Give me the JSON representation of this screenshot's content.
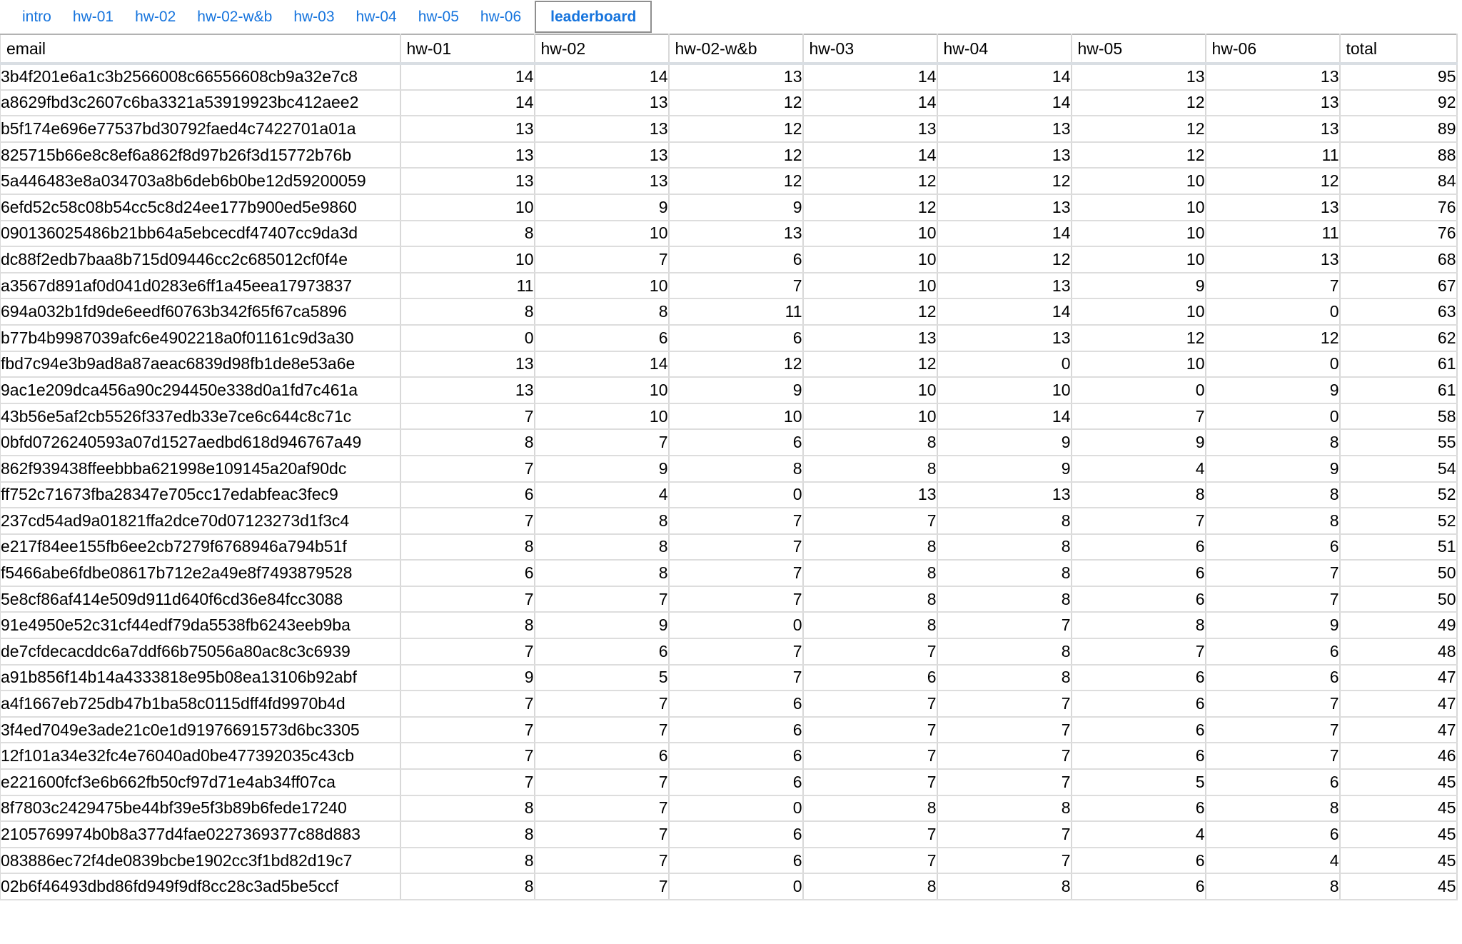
{
  "tabs": {
    "items": [
      {
        "label": "intro",
        "active": false
      },
      {
        "label": "hw-01",
        "active": false
      },
      {
        "label": "hw-02",
        "active": false
      },
      {
        "label": "hw-02-w&b",
        "active": false
      },
      {
        "label": "hw-03",
        "active": false
      },
      {
        "label": "hw-04",
        "active": false
      },
      {
        "label": "hw-05",
        "active": false
      },
      {
        "label": "hw-06",
        "active": false
      },
      {
        "label": "leaderboard",
        "active": true
      }
    ]
  },
  "colors": {
    "link_blue": "#1674dd",
    "active_tab_border": "#8f8f8f",
    "header_band": "#d9dee3",
    "grid_line": "#d8d8d8",
    "row_line": "#dddddd"
  },
  "table": {
    "columns": [
      "email",
      "hw-01",
      "hw-02",
      "hw-02-w&b",
      "hw-03",
      "hw-04",
      "hw-05",
      "hw-06",
      "total"
    ],
    "rows": [
      {
        "email": "3b4f201e6a1c3b2566008c66556608cb9a32e7c8",
        "scores": [
          14,
          14,
          13,
          14,
          14,
          13,
          13
        ],
        "total": 95
      },
      {
        "email": "a8629fbd3c2607c6ba3321a53919923bc412aee2",
        "scores": [
          14,
          13,
          12,
          14,
          14,
          12,
          13
        ],
        "total": 92
      },
      {
        "email": "b5f174e696e77537bd30792faed4c7422701a01a",
        "scores": [
          13,
          13,
          12,
          13,
          13,
          12,
          13
        ],
        "total": 89
      },
      {
        "email": "825715b66e8c8ef6a862f8d97b26f3d15772b76b",
        "scores": [
          13,
          13,
          12,
          14,
          13,
          12,
          11
        ],
        "total": 88
      },
      {
        "email": "5a446483e8a034703a8b6deb6b0be12d59200059",
        "scores": [
          13,
          13,
          12,
          12,
          12,
          10,
          12
        ],
        "total": 84
      },
      {
        "email": "6efd52c58c08b54cc5c8d24ee177b900ed5e9860",
        "scores": [
          10,
          9,
          9,
          12,
          13,
          10,
          13
        ],
        "total": 76
      },
      {
        "email": "090136025486b21bb64a5ebcecdf47407cc9da3d",
        "scores": [
          8,
          10,
          13,
          10,
          14,
          10,
          11
        ],
        "total": 76
      },
      {
        "email": "dc88f2edb7baa8b715d09446cc2c685012cf0f4e",
        "scores": [
          10,
          7,
          6,
          10,
          12,
          10,
          13
        ],
        "total": 68
      },
      {
        "email": "a3567d891af0d041d0283e6ff1a45eea17973837",
        "scores": [
          11,
          10,
          7,
          10,
          13,
          9,
          7
        ],
        "total": 67
      },
      {
        "email": "694a032b1fd9de6eedf60763b342f65f67ca5896",
        "scores": [
          8,
          8,
          11,
          12,
          14,
          10,
          0
        ],
        "total": 63
      },
      {
        "email": "b77b4b9987039afc6e4902218a0f01161c9d3a30",
        "scores": [
          0,
          6,
          6,
          13,
          13,
          12,
          12
        ],
        "total": 62
      },
      {
        "email": "fbd7c94e3b9ad8a87aeac6839d98fb1de8e53a6e",
        "scores": [
          13,
          14,
          12,
          12,
          0,
          10,
          0
        ],
        "total": 61
      },
      {
        "email": "9ac1e209dca456a90c294450e338d0a1fd7c461a",
        "scores": [
          13,
          10,
          9,
          10,
          10,
          0,
          9
        ],
        "total": 61
      },
      {
        "email": "43b56e5af2cb5526f337edb33e7ce6c644c8c71c",
        "scores": [
          7,
          10,
          10,
          10,
          14,
          7,
          0
        ],
        "total": 58
      },
      {
        "email": "0bfd0726240593a07d1527aedbd618d946767a49",
        "scores": [
          8,
          7,
          6,
          8,
          9,
          9,
          8
        ],
        "total": 55
      },
      {
        "email": "862f939438ffeebbba621998e109145a20af90dc",
        "scores": [
          7,
          9,
          8,
          8,
          9,
          4,
          9
        ],
        "total": 54
      },
      {
        "email": "ff752c71673fba28347e705cc17edabfeac3fec9",
        "scores": [
          6,
          4,
          0,
          13,
          13,
          8,
          8
        ],
        "total": 52
      },
      {
        "email": "237cd54ad9a01821ffa2dce70d07123273d1f3c4",
        "scores": [
          7,
          8,
          7,
          7,
          8,
          7,
          8
        ],
        "total": 52
      },
      {
        "email": "e217f84ee155fb6ee2cb7279f6768946a794b51f",
        "scores": [
          8,
          8,
          7,
          8,
          8,
          6,
          6
        ],
        "total": 51
      },
      {
        "email": "f5466abe6fdbe08617b712e2a49e8f7493879528",
        "scores": [
          6,
          8,
          7,
          8,
          8,
          6,
          7
        ],
        "total": 50
      },
      {
        "email": "5e8cf86af414e509d911d640f6cd36e84fcc3088",
        "scores": [
          7,
          7,
          7,
          8,
          8,
          6,
          7
        ],
        "total": 50
      },
      {
        "email": "91e4950e52c31cf44edf79da5538fb6243eeb9ba",
        "scores": [
          8,
          9,
          0,
          8,
          7,
          8,
          9
        ],
        "total": 49
      },
      {
        "email": "de7cfdecacddc6a7ddf66b75056a80ac8c3c6939",
        "scores": [
          7,
          6,
          7,
          7,
          8,
          7,
          6
        ],
        "total": 48
      },
      {
        "email": "a91b856f14b14a4333818e95b08ea13106b92abf",
        "scores": [
          9,
          5,
          7,
          6,
          8,
          6,
          6
        ],
        "total": 47
      },
      {
        "email": "a4f1667eb725db47b1ba58c0115dff4fd9970b4d",
        "scores": [
          7,
          7,
          6,
          7,
          7,
          6,
          7
        ],
        "total": 47
      },
      {
        "email": "3f4ed7049e3ade21c0e1d91976691573d6bc3305",
        "scores": [
          7,
          7,
          6,
          7,
          7,
          6,
          7
        ],
        "total": 47
      },
      {
        "email": "12f101a34e32fc4e76040ad0be477392035c43cb",
        "scores": [
          7,
          6,
          6,
          7,
          7,
          6,
          7
        ],
        "total": 46
      },
      {
        "email": "e221600fcf3e6b662fb50cf97d71e4ab34ff07ca",
        "scores": [
          7,
          7,
          6,
          7,
          7,
          5,
          6
        ],
        "total": 45
      },
      {
        "email": "8f7803c2429475be44bf39e5f3b89b6fede17240",
        "scores": [
          8,
          7,
          0,
          8,
          8,
          6,
          8
        ],
        "total": 45
      },
      {
        "email": "2105769974b0b8a377d4fae0227369377c88d883",
        "scores": [
          8,
          7,
          6,
          7,
          7,
          4,
          6
        ],
        "total": 45
      },
      {
        "email": "083886ec72f4de0839bcbe1902cc3f1bd82d19c7",
        "scores": [
          8,
          7,
          6,
          7,
          7,
          6,
          4
        ],
        "total": 45
      },
      {
        "email": "02b6f46493dbd86fd949f9df8cc28c3ad5be5ccf",
        "scores": [
          8,
          7,
          0,
          8,
          8,
          6,
          8
        ],
        "total": 45
      }
    ]
  }
}
